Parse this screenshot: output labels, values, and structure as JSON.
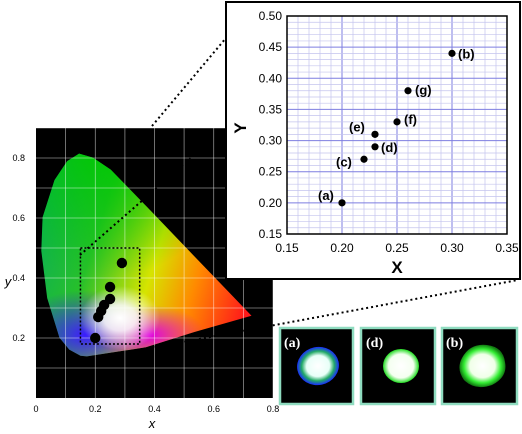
{
  "chart_data": [
    {
      "type": "scatter",
      "panel": "cie-1931-chromaticity",
      "xlabel": "x",
      "ylabel": "y",
      "xlim": [
        0,
        0.8
      ],
      "ylim": [
        0,
        0.9
      ],
      "xticks": [
        "0",
        "0.2",
        "0.4",
        "0.6",
        "0.8"
      ],
      "yticks": [
        "0.2",
        "0.4",
        "0.6",
        "0.8"
      ],
      "grid": true,
      "points": [
        {
          "x": 0.2,
          "y": 0.2
        },
        {
          "x": 0.21,
          "y": 0.27
        },
        {
          "x": 0.22,
          "y": 0.29
        },
        {
          "x": 0.23,
          "y": 0.31
        },
        {
          "x": 0.25,
          "y": 0.33
        },
        {
          "x": 0.25,
          "y": 0.37
        },
        {
          "x": 0.29,
          "y": 0.45
        }
      ],
      "zoom_region": {
        "x": [
          0.15,
          0.35
        ],
        "y": [
          0.18,
          0.5
        ]
      }
    },
    {
      "type": "scatter",
      "panel": "zoomed-inset",
      "xlabel": "X",
      "ylabel": "Y",
      "xlim": [
        0.15,
        0.35
      ],
      "ylim": [
        0.15,
        0.5
      ],
      "xticks": [
        "0.15",
        "0.20",
        "0.25",
        "0.30",
        "0.35"
      ],
      "yticks": [
        "0.15",
        "0.20",
        "0.25",
        "0.30",
        "0.35",
        "0.40",
        "0.45",
        "0.50"
      ],
      "grid": true,
      "points": [
        {
          "label": "(a)",
          "x": 0.2,
          "y": 0.2
        },
        {
          "label": "(c)",
          "x": 0.22,
          "y": 0.27
        },
        {
          "label": "(d)",
          "x": 0.23,
          "y": 0.29
        },
        {
          "label": "(e)",
          "x": 0.23,
          "y": 0.31
        },
        {
          "label": "(f)",
          "x": 0.25,
          "y": 0.33
        },
        {
          "label": "(g)",
          "x": 0.26,
          "y": 0.38
        },
        {
          "label": "(b)",
          "x": 0.3,
          "y": 0.44
        }
      ]
    }
  ],
  "thumbnails": [
    {
      "label": "(a)",
      "glow": "#3344ff"
    },
    {
      "label": "(d)",
      "glow": "#22dd22"
    },
    {
      "label": "(b)",
      "glow": "#33ff33"
    }
  ],
  "colors": {
    "thumbnail_border": "#8fdcc0",
    "grid_light": "#c4c4ee",
    "marker": "#000000"
  }
}
